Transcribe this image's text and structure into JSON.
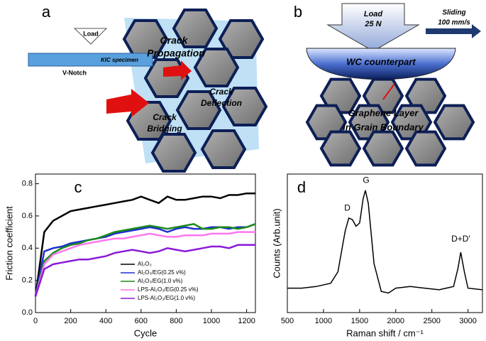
{
  "diagram_a": {
    "label": "a",
    "load": "Load",
    "notch": "V-Notch",
    "specimen": "KIC specimen",
    "propagation": [
      "Crack",
      "Propagation"
    ],
    "deflection": [
      "Crack",
      "Deflection"
    ],
    "bridging": [
      "Crack",
      "Bridging"
    ]
  },
  "diagram_b": {
    "label": "b",
    "load": [
      "Load",
      "25 N"
    ],
    "sliding": [
      "Sliding",
      "100 mm/s"
    ],
    "counterpart": "WC counterpart",
    "graphene": [
      "Graphene Layer",
      "in Grain Boundary"
    ]
  },
  "chart_data": [
    {
      "type": "line",
      "panel_label": "c",
      "x_label": "Cycle",
      "y_label": "Friction coefficient",
      "x": [
        0,
        50,
        100,
        150,
        200,
        250,
        300,
        350,
        400,
        450,
        500,
        550,
        600,
        650,
        700,
        750,
        800,
        850,
        900,
        950,
        1000,
        1050,
        1100,
        1150,
        1200,
        1250
      ],
      "series": [
        {
          "name": "Al₂O₃",
          "color": "#000000",
          "values": [
            0.1,
            0.5,
            0.57,
            0.6,
            0.63,
            0.64,
            0.65,
            0.66,
            0.67,
            0.68,
            0.69,
            0.7,
            0.72,
            0.7,
            0.68,
            0.72,
            0.7,
            0.7,
            0.71,
            0.72,
            0.72,
            0.71,
            0.73,
            0.73,
            0.74,
            0.74
          ]
        },
        {
          "name": "Al₂O₃/EG(0.25 v%)",
          "color": "#1f2fd0",
          "values": [
            0.1,
            0.38,
            0.4,
            0.41,
            0.43,
            0.44,
            0.45,
            0.46,
            0.47,
            0.49,
            0.5,
            0.51,
            0.52,
            0.53,
            0.52,
            0.5,
            0.52,
            0.53,
            0.52,
            0.52,
            0.53,
            0.53,
            0.52,
            0.53,
            0.53,
            0.55
          ]
        },
        {
          "name": "Al₂O₃/EG(1.0 v%)",
          "color": "#1a8a1a",
          "values": [
            0.1,
            0.32,
            0.37,
            0.4,
            0.42,
            0.43,
            0.45,
            0.46,
            0.48,
            0.5,
            0.51,
            0.52,
            0.53,
            0.54,
            0.53,
            0.52,
            0.53,
            0.54,
            0.55,
            0.52,
            0.52,
            0.53,
            0.53,
            0.52,
            0.53,
            0.55
          ]
        },
        {
          "name": "LPS-Al₂O₃/EG(0.25 v%)",
          "color": "#ff77ee",
          "values": [
            0.1,
            0.3,
            0.36,
            0.38,
            0.4,
            0.42,
            0.43,
            0.44,
            0.45,
            0.46,
            0.46,
            0.47,
            0.48,
            0.49,
            0.48,
            0.47,
            0.47,
            0.48,
            0.48,
            0.48,
            0.49,
            0.49,
            0.49,
            0.5,
            0.5,
            0.5
          ]
        },
        {
          "name": "LPS-Al₂O₃/EG(1.0 v%)",
          "color": "#8a1ad8",
          "values": [
            0.1,
            0.27,
            0.3,
            0.31,
            0.32,
            0.33,
            0.33,
            0.34,
            0.35,
            0.37,
            0.38,
            0.39,
            0.38,
            0.37,
            0.38,
            0.4,
            0.39,
            0.38,
            0.39,
            0.4,
            0.41,
            0.41,
            0.4,
            0.42,
            0.42,
            0.42
          ]
        }
      ],
      "xlim": [
        0,
        1250
      ],
      "ylim": [
        0,
        0.86
      ],
      "xticks": [
        0,
        200,
        400,
        600,
        800,
        1000,
        1200
      ],
      "yticks": [
        {
          "value": 0,
          "label": "0.0"
        },
        {
          "value": 0.2,
          "label": "0.2"
        },
        {
          "value": 0.4,
          "label": "0.4"
        },
        {
          "value": 0.6,
          "label": "0.6"
        },
        {
          "value": 0.8,
          "label": "0.8"
        }
      ]
    },
    {
      "type": "line",
      "panel_label": "d",
      "x_label": "Raman shift / cm⁻¹",
      "y_label": "Counts (Arb.unit)",
      "annotations": [
        "D",
        "G",
        "D+D'"
      ],
      "x": [
        500,
        700,
        900,
        1100,
        1200,
        1300,
        1350,
        1400,
        1450,
        1500,
        1550,
        1580,
        1620,
        1700,
        1800,
        1900,
        2000,
        2200,
        2400,
        2600,
        2800,
        2860,
        2900,
        2950,
        3000,
        3200
      ],
      "series": [
        {
          "name": null,
          "color": "#000000",
          "values": [
            0.3,
            0.3,
            0.31,
            0.33,
            0.4,
            0.65,
            0.73,
            0.72,
            0.68,
            0.7,
            0.85,
            0.9,
            0.82,
            0.45,
            0.28,
            0.27,
            0.3,
            0.31,
            0.3,
            0.29,
            0.31,
            0.42,
            0.52,
            0.4,
            0.3,
            0.29
          ]
        }
      ],
      "xlim": [
        500,
        3200
      ],
      "ylim": [
        0.15,
        1
      ],
      "xticks": [
        500,
        1000,
        1500,
        2000,
        2500,
        3000
      ]
    }
  ]
}
